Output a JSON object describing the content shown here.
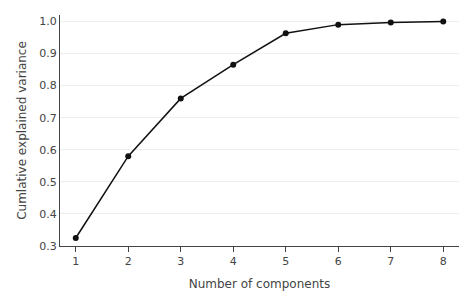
{
  "chart_data": {
    "type": "line",
    "x": [
      1,
      2,
      3,
      4,
      5,
      6,
      7,
      8
    ],
    "values": [
      0.325,
      0.58,
      0.76,
      0.865,
      0.963,
      0.99,
      0.997,
      1.0
    ],
    "xlabel": "Number of components",
    "ylabel": "Cumlative explained variance",
    "xlim": [
      0.7,
      8.3
    ],
    "ylim": [
      0.3,
      1.02
    ],
    "xticks": [
      1,
      2,
      3,
      4,
      5,
      6,
      7,
      8
    ],
    "yticks": [
      0.3,
      0.4,
      0.5,
      0.6,
      0.7,
      0.8,
      0.9,
      {
        "value": 1,
        "label": "1.0"
      }
    ],
    "color": "#111111",
    "marker": "circle",
    "line_style": "solid",
    "grid": "y"
  }
}
